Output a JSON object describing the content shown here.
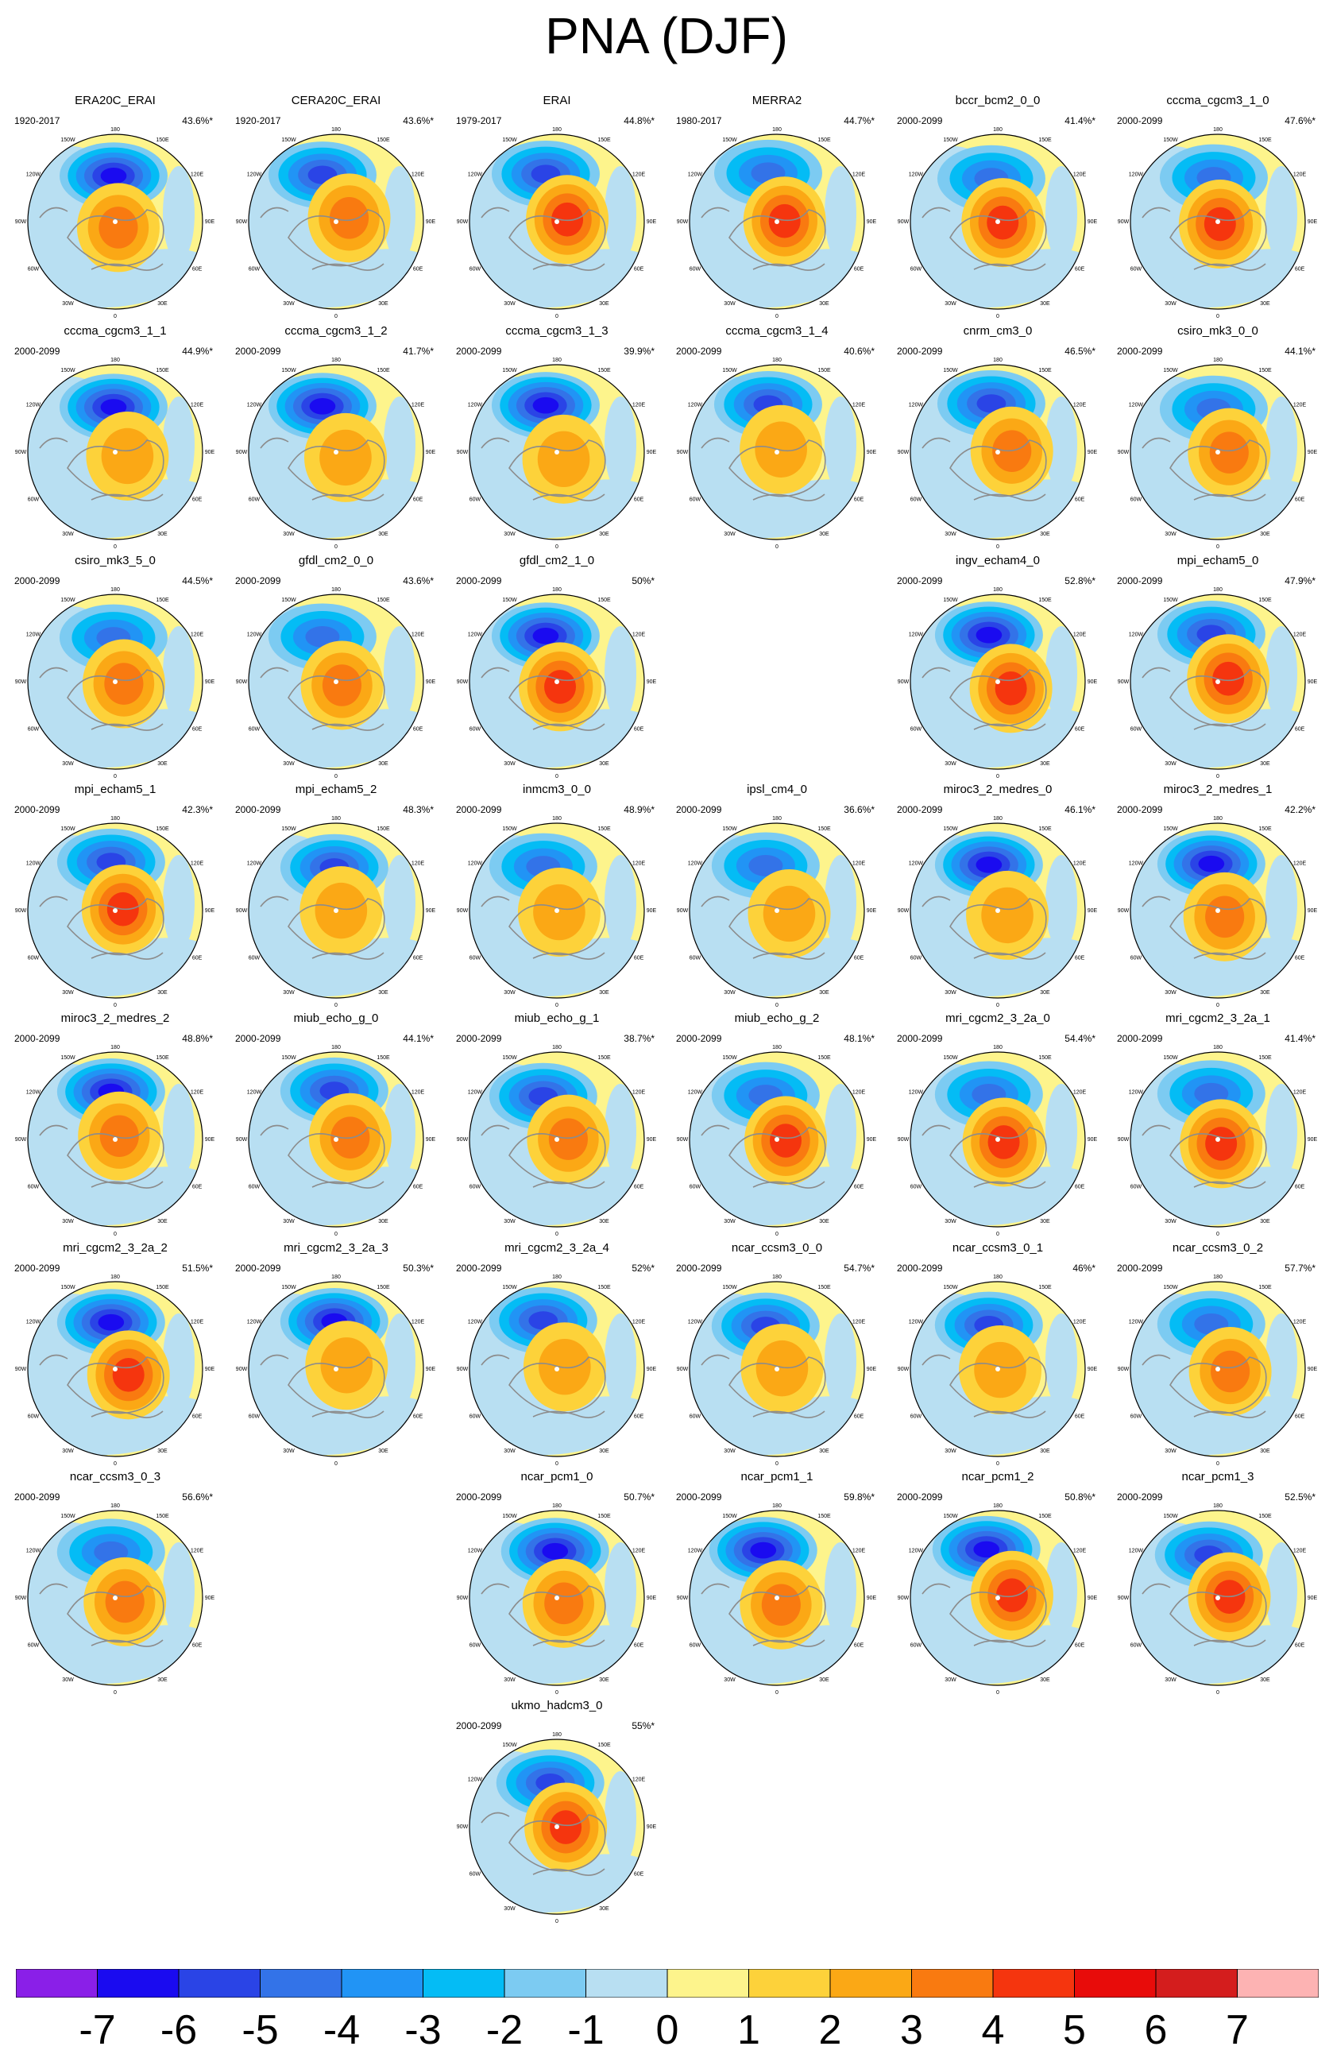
{
  "title": "PNA (DJF)",
  "chart_data": {
    "type": "heatmap",
    "title": "PNA (DJF)",
    "projection": "north-polar-stereographic",
    "lon_labels": [
      "180",
      "150E",
      "120E",
      "90E",
      "60E",
      "30E",
      "0",
      "30W",
      "60W",
      "90W",
      "120W",
      "150W"
    ],
    "colorbar": {
      "ticks": [
        "-7",
        "-6",
        "-5",
        "-4",
        "-3",
        "-2",
        "-1",
        "0",
        "1",
        "2",
        "3",
        "4",
        "5",
        "6",
        "7"
      ],
      "colors": [
        "#8a1fe8",
        "#1a0bf0",
        "#2a44e6",
        "#3373e8",
        "#2194f5",
        "#04bcf5",
        "#7ccbf2",
        "#b8dff2",
        "#fdf48c",
        "#fdd23a",
        "#fba815",
        "#f97a10",
        "#f5350e",
        "#e80c0a",
        "#d41d1d",
        "#fdb3b3"
      ]
    },
    "panels": [
      {
        "name": "ERA20C_ERAI",
        "period": "1920-2017",
        "pct": "43.6%*"
      },
      {
        "name": "CERA20C_ERAI",
        "period": "1920-2017",
        "pct": "43.6%*"
      },
      {
        "name": "ERAI",
        "period": "1979-2017",
        "pct": "44.8%*"
      },
      {
        "name": "MERRA2",
        "period": "1980-2017",
        "pct": "44.7%*"
      },
      {
        "name": "bccr_bcm2_0_0",
        "period": "2000-2099",
        "pct": "41.4%*"
      },
      {
        "name": "cccma_cgcm3_1_0",
        "period": "2000-2099",
        "pct": "47.6%*"
      },
      {
        "name": "cccma_cgcm3_1_1",
        "period": "2000-2099",
        "pct": "44.9%*"
      },
      {
        "name": "cccma_cgcm3_1_2",
        "period": "2000-2099",
        "pct": "41.7%*"
      },
      {
        "name": "cccma_cgcm3_1_3",
        "period": "2000-2099",
        "pct": "39.9%*"
      },
      {
        "name": "cccma_cgcm3_1_4",
        "period": "2000-2099",
        "pct": "40.6%*"
      },
      {
        "name": "cnrm_cm3_0",
        "period": "2000-2099",
        "pct": "46.5%*"
      },
      {
        "name": "csiro_mk3_0_0",
        "period": "2000-2099",
        "pct": "44.1%*"
      },
      {
        "name": "csiro_mk3_5_0",
        "period": "2000-2099",
        "pct": "44.5%*"
      },
      {
        "name": "gfdl_cm2_0_0",
        "period": "2000-2099",
        "pct": "43.6%*"
      },
      {
        "name": "gfdl_cm2_1_0",
        "period": "2000-2099",
        "pct": "50%*"
      },
      {
        "name": "ingv_echam4_0",
        "period": "2000-2099",
        "pct": "52.8%*"
      },
      {
        "name": "mpi_echam5_0",
        "period": "2000-2099",
        "pct": "47.9%*"
      },
      {
        "name": "mpi_echam5_1",
        "period": "2000-2099",
        "pct": "42.3%*"
      },
      {
        "name": "mpi_echam5_2",
        "period": "2000-2099",
        "pct": "48.3%*"
      },
      {
        "name": "inmcm3_0_0",
        "period": "2000-2099",
        "pct": "48.9%*"
      },
      {
        "name": "ipsl_cm4_0",
        "period": "2000-2099",
        "pct": "36.6%*"
      },
      {
        "name": "miroc3_2_medres_0",
        "period": "2000-2099",
        "pct": "46.1%*"
      },
      {
        "name": "miroc3_2_medres_1",
        "period": "2000-2099",
        "pct": "42.2%*"
      },
      {
        "name": "miroc3_2_medres_2",
        "period": "2000-2099",
        "pct": "48.8%*"
      },
      {
        "name": "miub_echo_g_0",
        "period": "2000-2099",
        "pct": "44.1%*"
      },
      {
        "name": "miub_echo_g_1",
        "period": "2000-2099",
        "pct": "38.7%*"
      },
      {
        "name": "miub_echo_g_2",
        "period": "2000-2099",
        "pct": "48.1%*"
      },
      {
        "name": "mri_cgcm2_3_2a_0",
        "period": "2000-2099",
        "pct": "54.4%*"
      },
      {
        "name": "mri_cgcm2_3_2a_1",
        "period": "2000-2099",
        "pct": "41.4%*"
      },
      {
        "name": "mri_cgcm2_3_2a_2",
        "period": "2000-2099",
        "pct": "51.5%*"
      },
      {
        "name": "mri_cgcm2_3_2a_3",
        "period": "2000-2099",
        "pct": "50.3%*"
      },
      {
        "name": "mri_cgcm2_3_2a_4",
        "period": "2000-2099",
        "pct": "52%*"
      },
      {
        "name": "ncar_ccsm3_0_0",
        "period": "2000-2099",
        "pct": "54.7%*"
      },
      {
        "name": "ncar_ccsm3_0_1",
        "period": "2000-2099",
        "pct": "46%*"
      },
      {
        "name": "ncar_ccsm3_0_2",
        "period": "2000-2099",
        "pct": "57.7%*"
      },
      {
        "name": "ncar_ccsm3_0_3",
        "period": "2000-2099",
        "pct": "56.6%*"
      },
      {
        "name": "ncar_pcm1_0",
        "period": "2000-2099",
        "pct": "50.7%*"
      },
      {
        "name": "ncar_pcm1_1",
        "period": "2000-2099",
        "pct": "59.8%*"
      },
      {
        "name": "ncar_pcm1_2",
        "period": "2000-2099",
        "pct": "50.8%*"
      },
      {
        "name": "ncar_pcm1_3",
        "period": "2000-2099",
        "pct": "52.5%*"
      },
      {
        "name": "ukmo_hadcm3_0",
        "period": "2000-2099",
        "pct": "55%*"
      }
    ]
  }
}
